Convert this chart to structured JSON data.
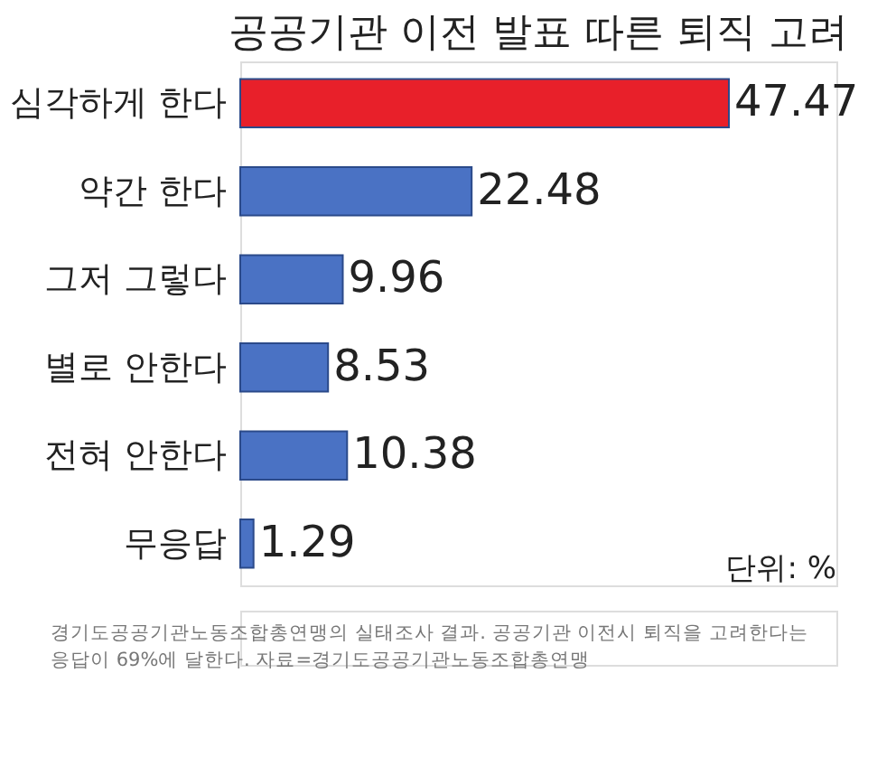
{
  "chart_data": {
    "type": "bar",
    "orientation": "horizontal",
    "title": "공공기관 이전 발표 따른 퇴직 고려",
    "categories": [
      "심각하게 한다",
      "약간 한다",
      "그저 그렇다",
      "별로 안한다",
      "전혀 안한다",
      "무응답"
    ],
    "values": [
      47.47,
      22.48,
      9.96,
      8.53,
      10.38,
      1.29
    ],
    "colors": [
      "#e8202a",
      "#4a72c4",
      "#4a72c4",
      "#4a72c4",
      "#4a72c4",
      "#4a72c4"
    ],
    "data_labels": true,
    "grid": false,
    "annotations": [
      "단위: %",
      "경기도공공기관노동조합총연맹의 실태조사 결과. 공공기관 이전시 퇴직을 고려한다는 응답이 69%에 달한다. 자료=경기도공공기관노동조합총연맹"
    ]
  }
}
